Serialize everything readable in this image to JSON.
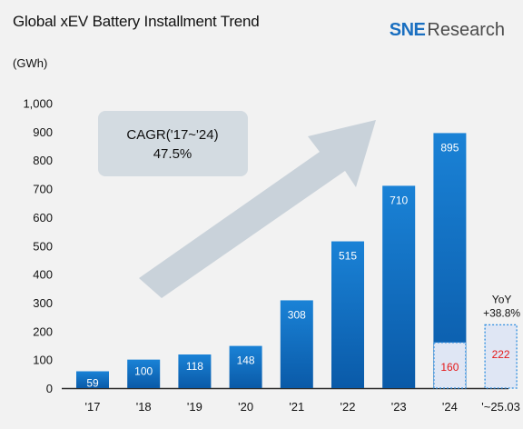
{
  "header": {
    "title": "Global xEV Battery Installment Trend",
    "logo": {
      "brand": "SNE",
      "suffix": "Research"
    }
  },
  "colors": {
    "bar_gradient_top": "#1a82d6",
    "bar_gradient_bottom": "#0a5aa8",
    "quarter_box_fill": "#dfe6f4",
    "quarter_box_border": "#2d8de0",
    "quarter_value": "#e51818",
    "callout_fill": "#d3dbe1",
    "arrow_color": "#c2ccd6"
  },
  "chart_data": {
    "type": "bar",
    "unit_label": "(GWh)",
    "ylim": [
      0,
      1000
    ],
    "yticks": [
      "1,000",
      "900",
      "800",
      "700",
      "600",
      "500",
      "400",
      "300",
      "200",
      "100",
      "0"
    ],
    "ytick_values": [
      1000,
      900,
      800,
      700,
      600,
      500,
      400,
      300,
      200,
      100,
      0
    ],
    "categories": [
      "'17",
      "'18",
      "'19",
      "'20",
      "'21",
      "'22",
      "'23",
      "'24",
      "'~25.03"
    ],
    "values": [
      59,
      100,
      118,
      148,
      308,
      515,
      710,
      895,
      null
    ],
    "data_labels": [
      "59",
      "100",
      "118",
      "148",
      "308",
      "515",
      "710",
      "895",
      ""
    ],
    "quarter_comparison": {
      "prior_period_category": "'24",
      "prior_period_value": 160,
      "current_period_category": "'~25.03",
      "current_period_value": 222,
      "yoy_label": "YoY",
      "yoy_value": "+38.8%"
    },
    "annotation": {
      "line1": "CAGR('17~'24)",
      "line2": "47.5%"
    }
  }
}
